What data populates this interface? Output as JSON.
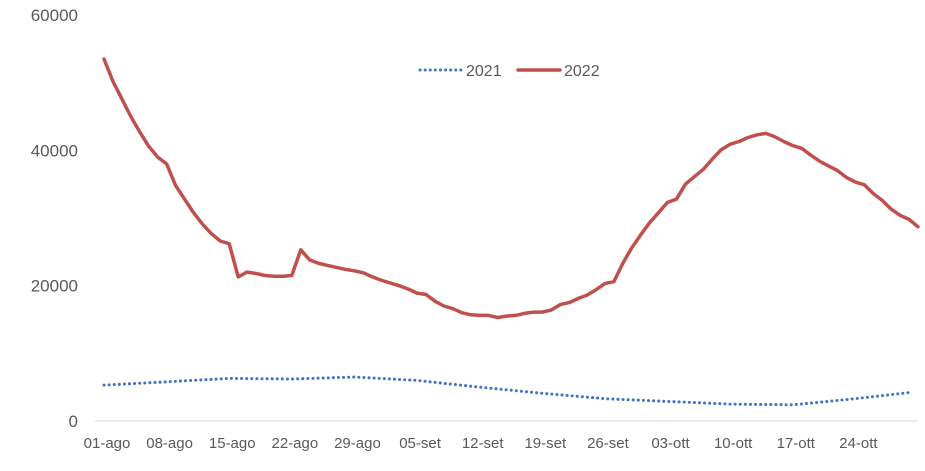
{
  "chart_data": {
    "type": "line",
    "title": "",
    "xlabel": "",
    "ylabel": "",
    "ylim": [
      0,
      60000
    ],
    "yticks": [
      0,
      20000,
      40000,
      60000
    ],
    "ytick_labels": [
      "0",
      "20000",
      "40000",
      "60000"
    ],
    "x": [
      "01-ago",
      "08-ago",
      "15-ago",
      "22-ago",
      "29-ago",
      "05-set",
      "12-set",
      "19-set",
      "26-set",
      "03-ott",
      "10-ott",
      "17-ott",
      "24-ott"
    ],
    "grid": false,
    "legend": "top-center",
    "series": [
      {
        "name": "2021",
        "style": "dotted",
        "color": "#4472C4",
        "points": [
          [
            0,
            5300
          ],
          [
            7,
            5800
          ],
          [
            14,
            6300
          ],
          [
            21,
            6200
          ],
          [
            28,
            6500
          ],
          [
            35,
            6000
          ],
          [
            42,
            5000
          ],
          [
            49,
            4100
          ],
          [
            56,
            3300
          ],
          [
            63,
            2900
          ],
          [
            70,
            2500
          ],
          [
            77,
            2400
          ],
          [
            84,
            3300
          ],
          [
            90,
            4200
          ]
        ]
      },
      {
        "name": "2022",
        "style": "solid",
        "color": "#C0504D",
        "points": [
          [
            0,
            53500
          ],
          [
            1,
            50200
          ],
          [
            2,
            47600
          ],
          [
            3,
            45000
          ],
          [
            4,
            42700
          ],
          [
            5,
            40600
          ],
          [
            6,
            39000
          ],
          [
            7,
            38000
          ],
          [
            8,
            34800
          ],
          [
            9,
            32800
          ],
          [
            10,
            30800
          ],
          [
            11,
            29100
          ],
          [
            12,
            27700
          ],
          [
            13,
            26600
          ],
          [
            14,
            26200
          ],
          [
            15,
            21300
          ],
          [
            16,
            22000
          ],
          [
            17,
            21800
          ],
          [
            18,
            21500
          ],
          [
            19,
            21400
          ],
          [
            20,
            21400
          ],
          [
            21,
            21500
          ],
          [
            22,
            25300
          ],
          [
            23,
            23800
          ],
          [
            24,
            23300
          ],
          [
            25,
            23000
          ],
          [
            26,
            22700
          ],
          [
            27,
            22400
          ],
          [
            28,
            22200
          ],
          [
            29,
            21900
          ],
          [
            30,
            21300
          ],
          [
            31,
            20800
          ],
          [
            32,
            20400
          ],
          [
            33,
            20000
          ],
          [
            34,
            19500
          ],
          [
            35,
            18900
          ],
          [
            36,
            18700
          ],
          [
            37,
            17700
          ],
          [
            38,
            17000
          ],
          [
            39,
            16600
          ],
          [
            40,
            16000
          ],
          [
            41,
            15700
          ],
          [
            42,
            15600
          ],
          [
            43,
            15600
          ],
          [
            44,
            15300
          ],
          [
            45,
            15500
          ],
          [
            46,
            15600
          ],
          [
            47,
            15900
          ],
          [
            48,
            16100
          ],
          [
            49,
            16100
          ],
          [
            50,
            16400
          ],
          [
            51,
            17200
          ],
          [
            52,
            17500
          ],
          [
            53,
            18100
          ],
          [
            54,
            18600
          ],
          [
            55,
            19400
          ],
          [
            56,
            20300
          ],
          [
            57,
            20600
          ],
          [
            58,
            23300
          ],
          [
            59,
            25600
          ],
          [
            60,
            27500
          ],
          [
            61,
            29300
          ],
          [
            62,
            30800
          ],
          [
            63,
            32300
          ],
          [
            64,
            32800
          ],
          [
            65,
            35000
          ],
          [
            66,
            36100
          ],
          [
            67,
            37200
          ],
          [
            68,
            38700
          ],
          [
            69,
            40100
          ],
          [
            70,
            40900
          ],
          [
            71,
            41300
          ],
          [
            72,
            41900
          ],
          [
            73,
            42300
          ],
          [
            74,
            42500
          ],
          [
            75,
            42000
          ],
          [
            76,
            41300
          ],
          [
            77,
            40700
          ],
          [
            78,
            40300
          ],
          [
            79,
            39300
          ],
          [
            80,
            38400
          ],
          [
            81,
            37700
          ],
          [
            82,
            37000
          ],
          [
            83,
            36000
          ],
          [
            84,
            35300
          ],
          [
            85,
            34900
          ],
          [
            86,
            33600
          ],
          [
            87,
            32600
          ],
          [
            88,
            31300
          ],
          [
            89,
            30400
          ],
          [
            90,
            29800
          ],
          [
            91,
            28700
          ]
        ]
      }
    ]
  }
}
